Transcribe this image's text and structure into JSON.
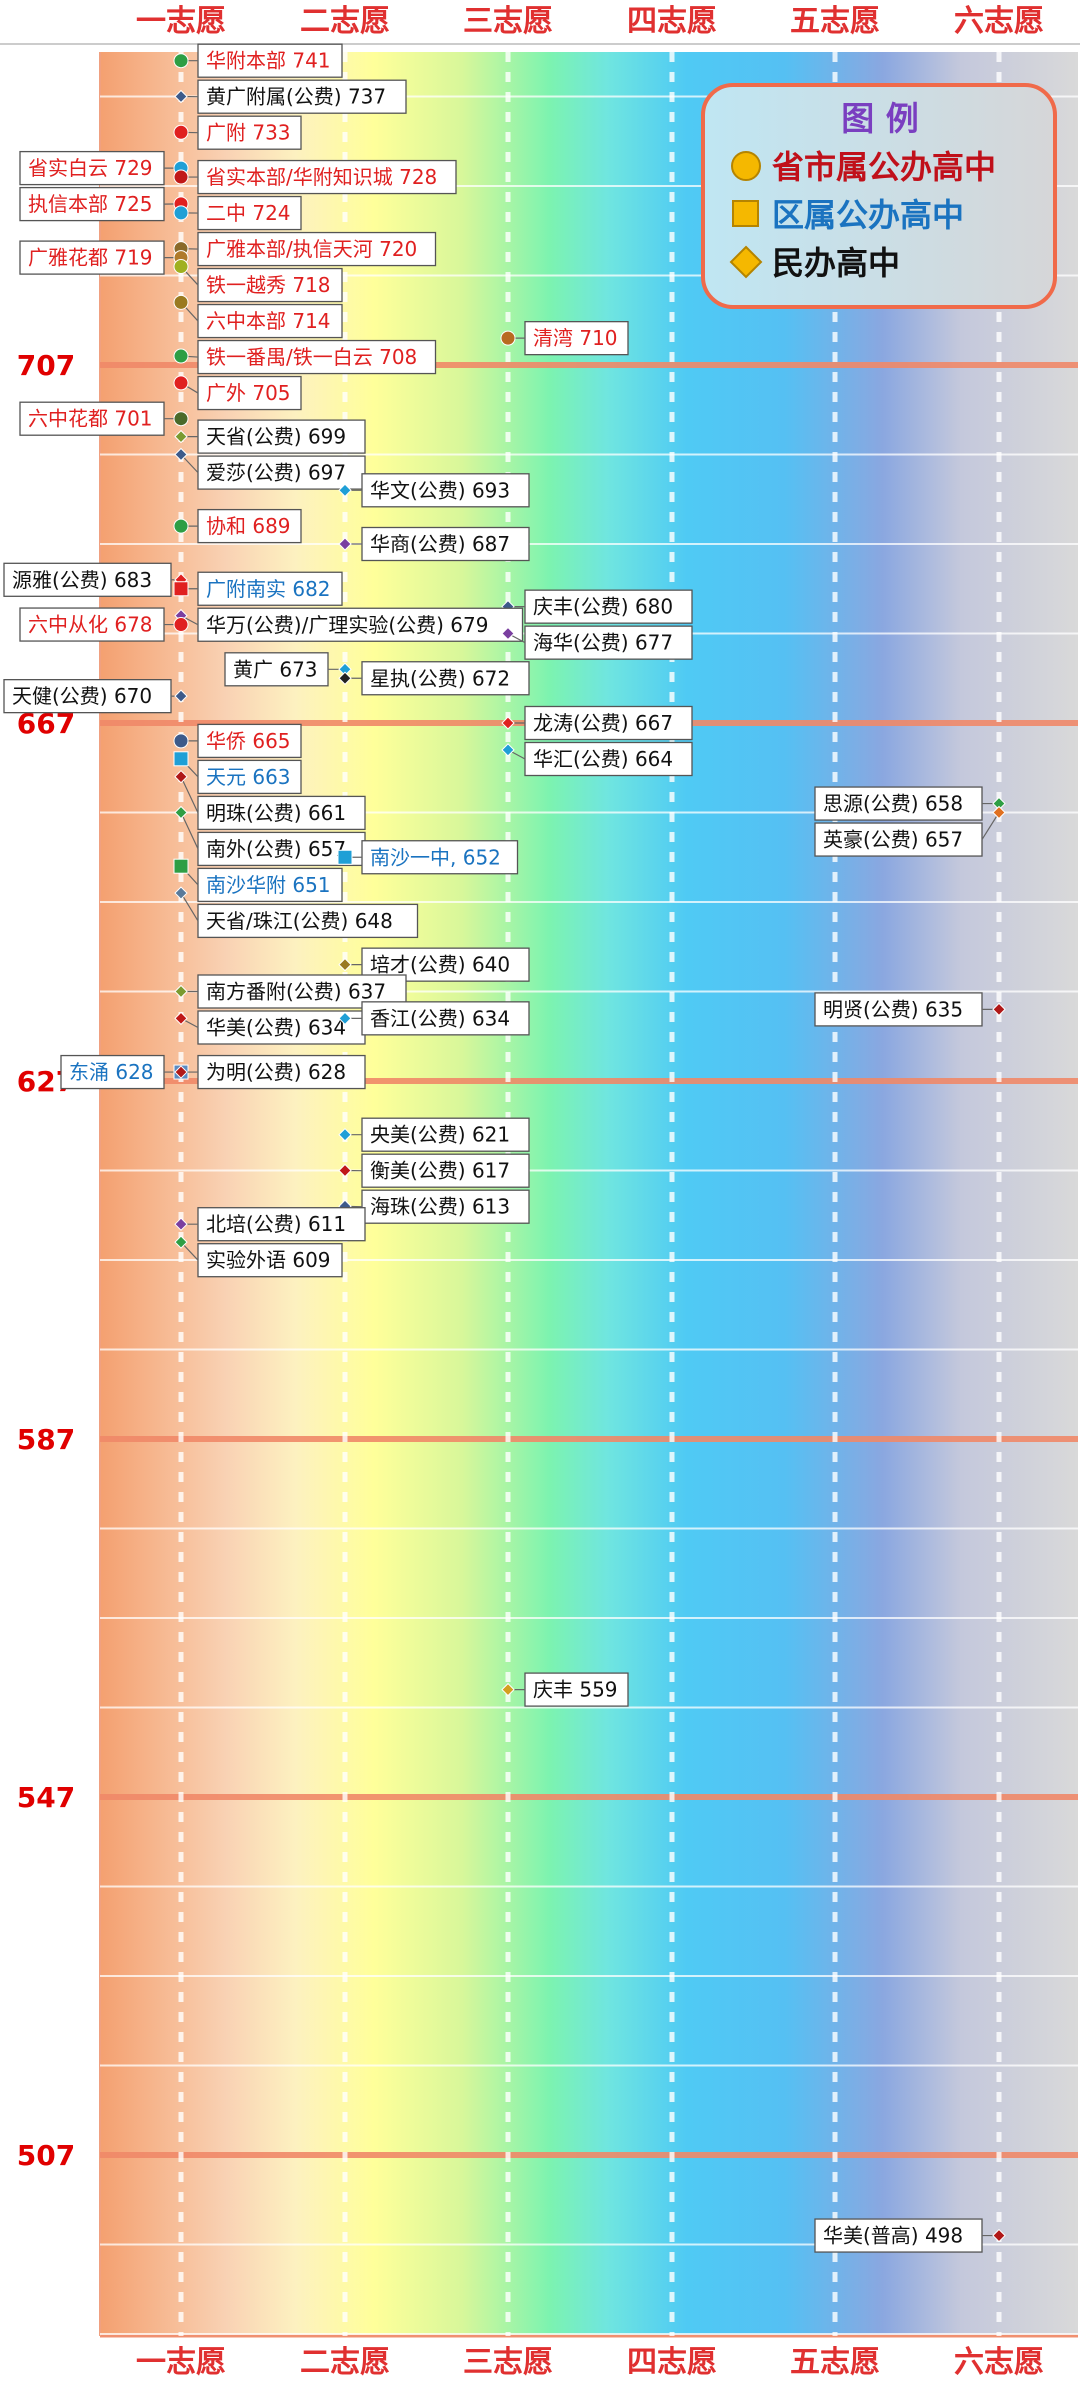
{
  "chart_data": {
    "type": "scatter",
    "categories": [
      "一志愿",
      "二志愿",
      "三志愿",
      "四志愿",
      "五志愿",
      "六志愿"
    ],
    "yticks": [
      707,
      667,
      627,
      587,
      547,
      507
    ],
    "ylim": [
      485,
      748
    ],
    "grid": true,
    "legend": {
      "title": "图 例",
      "placement": "top-right",
      "items": [
        {
          "label": "省市属公办高中",
          "marker": "circle",
          "text_color": "#c0101a",
          "marker_color": "#f5b800"
        },
        {
          "label": "区属公办高中",
          "marker": "square",
          "text_color": "#1a73c0",
          "marker_color": "#f5b800"
        },
        {
          "label": "民办高中",
          "marker": "diamond",
          "text_color": "#111111",
          "marker_color": "#f5b800"
        }
      ]
    },
    "type_colors": {
      "city": "#e02020",
      "district": "#1a73c0",
      "private": "#111111"
    },
    "points": [
      {
        "label": "华附本部 741",
        "col": 1,
        "y": 741,
        "kind": "city",
        "dot": "#2e9e44",
        "side": "right"
      },
      {
        "label": "黄广附属(公费) 737",
        "col": 1,
        "y": 737,
        "kind": "private",
        "dot": "#3d5a8a",
        "side": "right"
      },
      {
        "label": "广附 733",
        "col": 1,
        "y": 733,
        "kind": "city",
        "dot": "#e02020",
        "side": "right"
      },
      {
        "label": "省实白云 729",
        "col": 1,
        "y": 729,
        "kind": "city",
        "dot": "#1f9fd6",
        "side": "left"
      },
      {
        "label": "省实本部/华附知识城 728",
        "col": 1,
        "y": 728,
        "kind": "city",
        "dot": "#c01818",
        "side": "right"
      },
      {
        "label": "执信本部 725",
        "col": 1,
        "y": 725,
        "kind": "city",
        "dot": "#e02020",
        "side": "left"
      },
      {
        "label": "二中 724",
        "col": 1,
        "y": 724,
        "kind": "city",
        "dot": "#1f9fd6",
        "side": "right"
      },
      {
        "label": "广雅本部/执信天河 720",
        "col": 1,
        "y": 720,
        "kind": "city",
        "dot": "#8a6a2a",
        "side": "right"
      },
      {
        "label": "广雅花都 719",
        "col": 1,
        "y": 719,
        "kind": "city",
        "dot": "#b07a2a",
        "side": "left"
      },
      {
        "label": "铁一越秀 718",
        "col": 1,
        "y": 718,
        "kind": "city",
        "dot": "#a0b020",
        "side": "right"
      },
      {
        "label": "六中本部 714",
        "col": 1,
        "y": 714,
        "kind": "city",
        "dot": "#9a7a20",
        "side": "right"
      },
      {
        "label": "清湾 710",
        "col": 3,
        "y": 710,
        "kind": "city",
        "dot": "#b86a20",
        "side": "right"
      },
      {
        "label": "铁一番禺/铁一白云 708",
        "col": 1,
        "y": 708,
        "kind": "city",
        "dot": "#2e9e44",
        "side": "right"
      },
      {
        "label": "广外 705",
        "col": 1,
        "y": 705,
        "kind": "city",
        "dot": "#e02020",
        "side": "right"
      },
      {
        "label": "六中花都 701",
        "col": 1,
        "y": 701,
        "kind": "city",
        "dot": "#4a6a2a",
        "side": "left"
      },
      {
        "label": "天省(公费) 699",
        "col": 1,
        "y": 699,
        "kind": "private",
        "dot": "#7a9a30",
        "side": "right"
      },
      {
        "label": "爱莎(公费) 697",
        "col": 1,
        "y": 697,
        "kind": "private",
        "dot": "#3d5a8a",
        "side": "right"
      },
      {
        "label": "华文(公费) 693",
        "col": 2,
        "y": 693,
        "kind": "private",
        "dot": "#1f9fd6",
        "side": "right"
      },
      {
        "label": "协和 689",
        "col": 1,
        "y": 689,
        "kind": "city",
        "dot": "#2e9e44",
        "side": "right"
      },
      {
        "label": "华商(公费) 687",
        "col": 2,
        "y": 687,
        "kind": "private",
        "dot": "#7a3fa0",
        "side": "right"
      },
      {
        "label": "源雅(公费) 683",
        "col": 1,
        "y": 683,
        "kind": "private",
        "dot": "#e02020",
        "side": "left"
      },
      {
        "label": "广附南实 682",
        "col": 1,
        "y": 682,
        "kind": "district",
        "dot": "#e02020",
        "side": "right"
      },
      {
        "label": "庆丰(公费) 680",
        "col": 3,
        "y": 680,
        "kind": "private",
        "dot": "#3d5a8a",
        "side": "right"
      },
      {
        "label": "华万(公费)/广理实验(公费) 679",
        "col": 1,
        "y": 679,
        "kind": "private",
        "dot": "#7a3fa0",
        "side": "right"
      },
      {
        "label": "六中从化 678",
        "col": 1,
        "y": 678,
        "kind": "city",
        "dot": "#e02020",
        "side": "left"
      },
      {
        "label": "海华(公费) 677",
        "col": 3,
        "y": 677,
        "kind": "private",
        "dot": "#7a3fa0",
        "side": "right"
      },
      {
        "label": "黄广 673",
        "col": 2,
        "y": 673,
        "kind": "private",
        "dot": "#1f9fd6",
        "side": "left"
      },
      {
        "label": "星执(公费) 672",
        "col": 2,
        "y": 672,
        "kind": "private",
        "dot": "#222222",
        "side": "right"
      },
      {
        "label": "天健(公费) 670",
        "col": 1,
        "y": 670,
        "kind": "private",
        "dot": "#3d5a8a",
        "side": "left"
      },
      {
        "label": "华侨 665",
        "col": 1,
        "y": 665,
        "kind": "city",
        "dot": "#3d5a8a",
        "side": "right"
      },
      {
        "label": "龙涛(公费) 667",
        "col": 3,
        "y": 667,
        "kind": "private",
        "dot": "#e02020",
        "side": "right"
      },
      {
        "label": "天元 663",
        "col": 1,
        "y": 663,
        "kind": "district",
        "dot": "#1f9fd6",
        "side": "right"
      },
      {
        "label": "华汇(公费) 664",
        "col": 3,
        "y": 664,
        "kind": "private",
        "dot": "#1f9fd6",
        "side": "right"
      },
      {
        "label": "明珠(公费) 661",
        "col": 1,
        "y": 661,
        "kind": "private",
        "dot": "#b01818",
        "side": "right"
      },
      {
        "label": "思源(公费) 658",
        "col": 6,
        "y": 658,
        "kind": "private",
        "dot": "#2e9e44",
        "side": "left"
      },
      {
        "label": "南外(公费) 657",
        "col": 1,
        "y": 657,
        "kind": "private",
        "dot": "#2e9e44",
        "side": "right"
      },
      {
        "label": "英豪(公费) 657",
        "col": 6,
        "y": 657,
        "kind": "private",
        "dot": "#e07020",
        "side": "left"
      },
      {
        "label": "南沙一中, 652",
        "col": 2,
        "y": 652,
        "kind": "district",
        "dot": "#1f9fd6",
        "side": "right"
      },
      {
        "label": "南沙华附 651",
        "col": 1,
        "y": 651,
        "kind": "district",
        "dot": "#2e9e44",
        "side": "right"
      },
      {
        "label": "天省/珠江(公费) 648",
        "col": 1,
        "y": 648,
        "kind": "private",
        "dot": "#5a7a9a",
        "side": "right"
      },
      {
        "label": "培才(公费) 640",
        "col": 2,
        "y": 640,
        "kind": "private",
        "dot": "#9a7a20",
        "side": "right"
      },
      {
        "label": "南方番附(公费) 637",
        "col": 1,
        "y": 637,
        "kind": "private",
        "dot": "#7a9a30",
        "side": "right"
      },
      {
        "label": "明贤(公费) 635",
        "col": 6,
        "y": 635,
        "kind": "private",
        "dot": "#b01818",
        "side": "left"
      },
      {
        "label": "华美(公费) 634",
        "col": 1,
        "y": 634,
        "kind": "private",
        "dot": "#c01818",
        "side": "right"
      },
      {
        "label": "香江(公费) 634",
        "col": 2,
        "y": 634,
        "kind": "private",
        "dot": "#1f9fd6",
        "side": "right"
      },
      {
        "label": "东涌 628",
        "col": 1,
        "y": 628,
        "kind": "district",
        "dot": "#5a8ac0",
        "side": "left"
      },
      {
        "label": "为明(公费) 628",
        "col": 1,
        "y": 628,
        "kind": "private",
        "dot": "#b01818",
        "side": "right"
      },
      {
        "label": "央美(公费) 621",
        "col": 2,
        "y": 621,
        "kind": "private",
        "dot": "#1f9fd6",
        "side": "right"
      },
      {
        "label": "衡美(公费) 617",
        "col": 2,
        "y": 617,
        "kind": "private",
        "dot": "#c01818",
        "side": "right"
      },
      {
        "label": "海珠(公费) 613",
        "col": 2,
        "y": 613,
        "kind": "private",
        "dot": "#3d5a8a",
        "side": "right"
      },
      {
        "label": "北培(公费) 611",
        "col": 1,
        "y": 611,
        "kind": "private",
        "dot": "#7a3fa0",
        "side": "right"
      },
      {
        "label": "实验外语 609",
        "col": 1,
        "y": 609,
        "kind": "private",
        "dot": "#2e9e44",
        "side": "right"
      },
      {
        "label": "庆丰 559",
        "col": 3,
        "y": 559,
        "kind": "private",
        "dot": "#d4a020",
        "side": "right"
      },
      {
        "label": "华美(普高) 498",
        "col": 6,
        "y": 498,
        "kind": "private",
        "dot": "#b01818",
        "side": "left"
      }
    ]
  }
}
